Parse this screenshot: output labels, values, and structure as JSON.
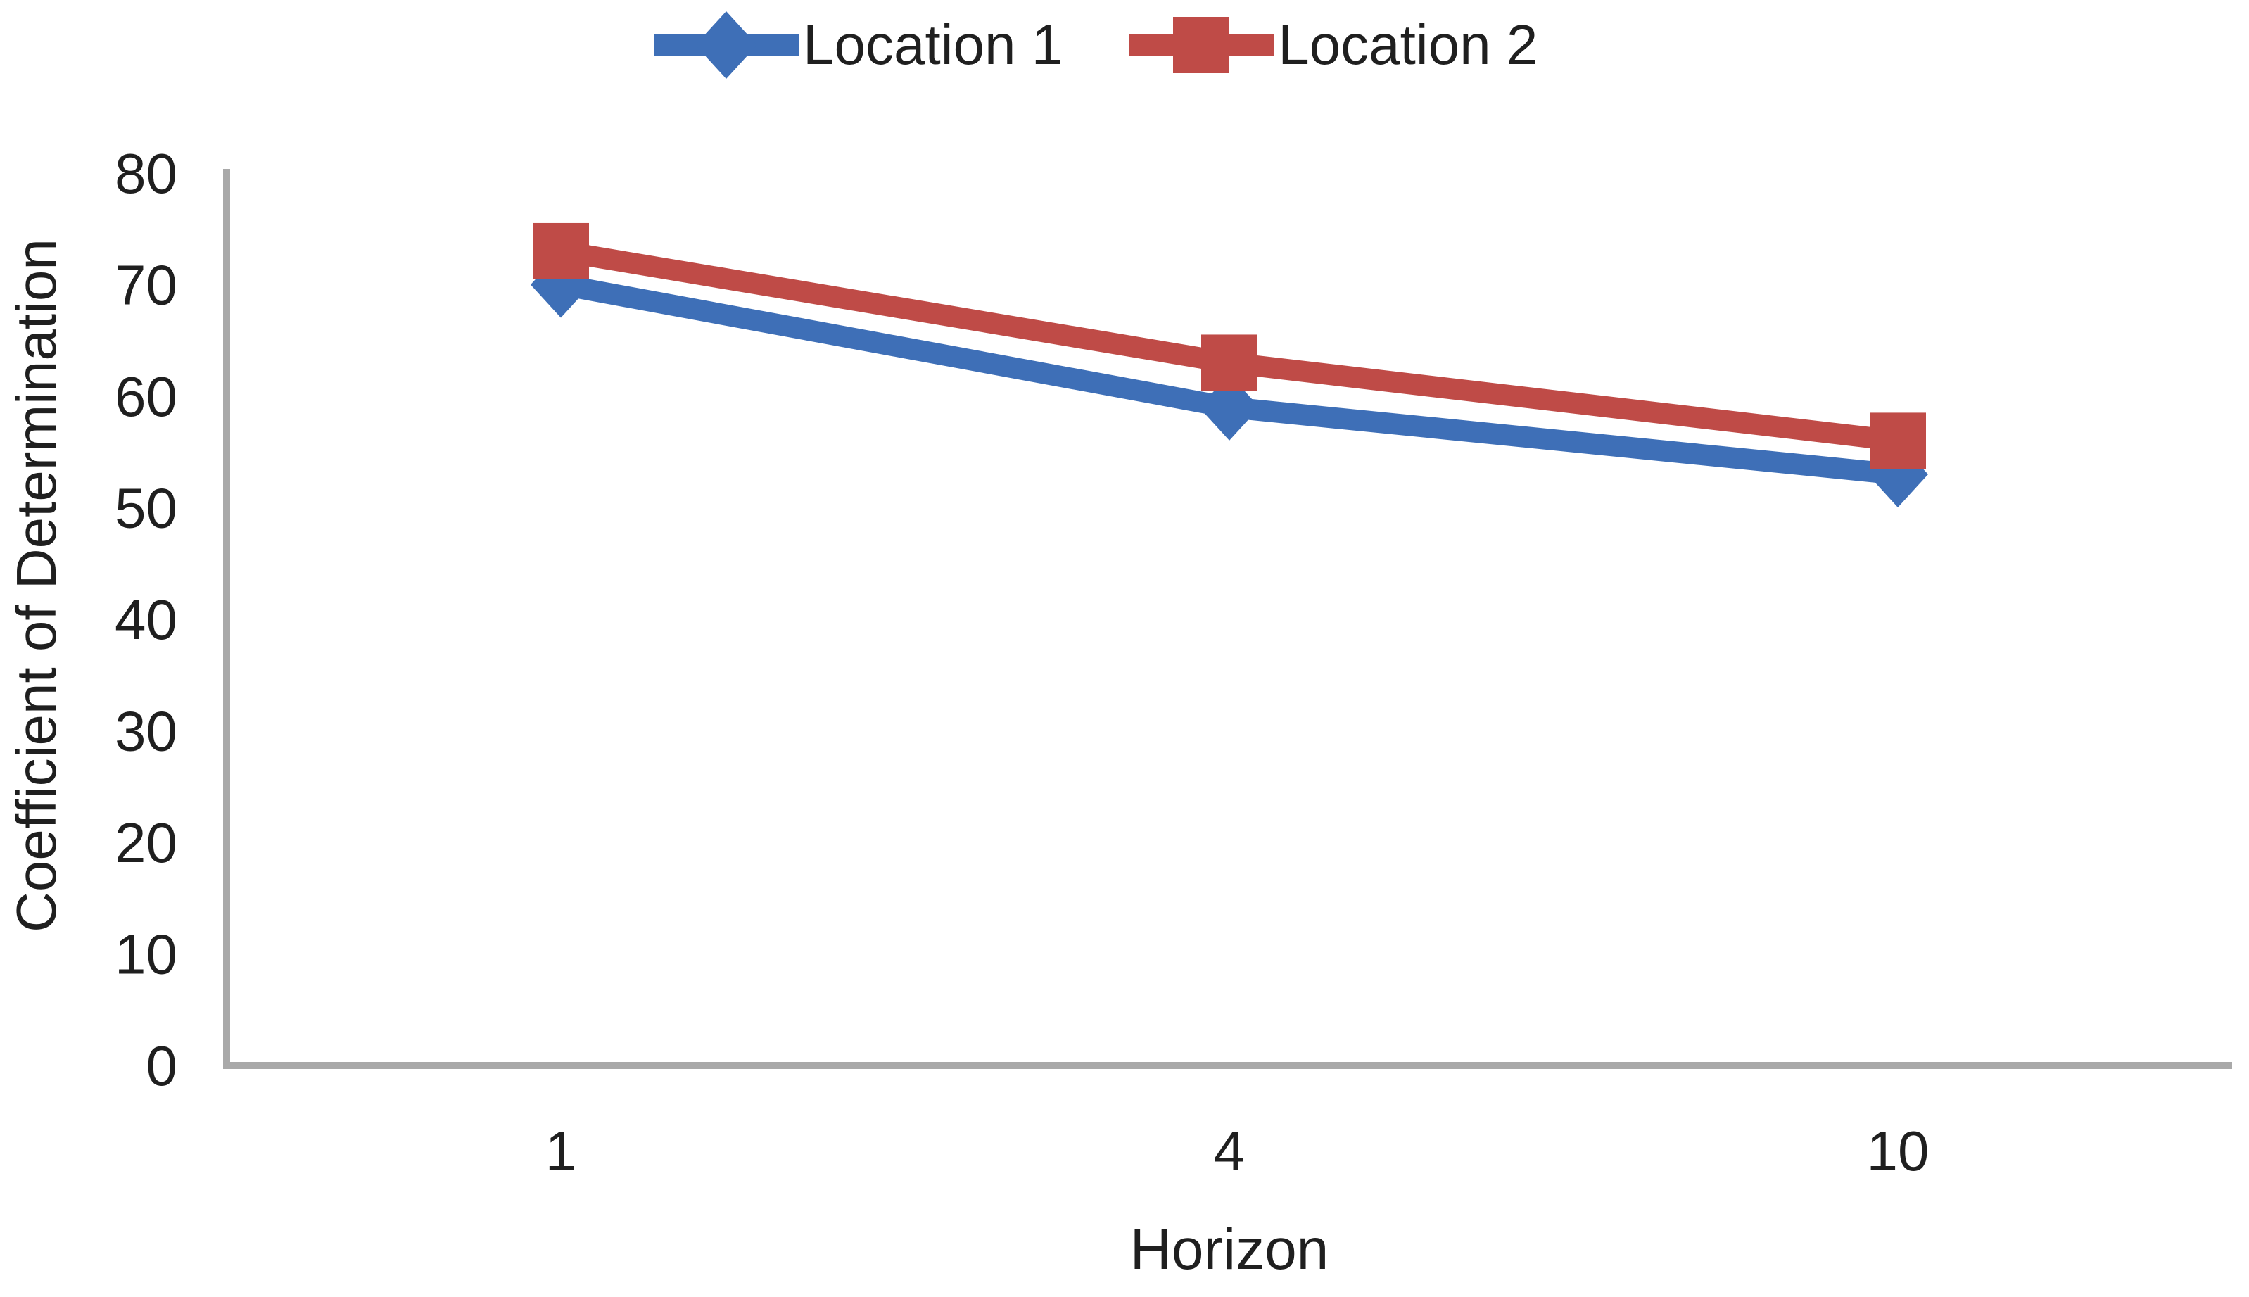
{
  "chart_data": {
    "type": "line",
    "title": "",
    "xlabel": "Horizon",
    "ylabel": "Coefficient of Determination",
    "categories": [
      "1",
      "4",
      "10"
    ],
    "yticks": [
      0,
      10,
      20,
      30,
      40,
      50,
      60,
      70,
      80
    ],
    "ylim": [
      0,
      80
    ],
    "grid": false,
    "legend_position": "top-center",
    "series": [
      {
        "name": "Location 1",
        "values": [
          70,
          59,
          53
        ],
        "color": "#3E6FB7",
        "marker": "diamond"
      },
      {
        "name": "Location 2",
        "values": [
          73,
          63,
          56
        ],
        "color": "#BF4B47",
        "marker": "square"
      }
    ],
    "axis_color": "#A9A9A9",
    "text_color": "#1F1F1F"
  }
}
